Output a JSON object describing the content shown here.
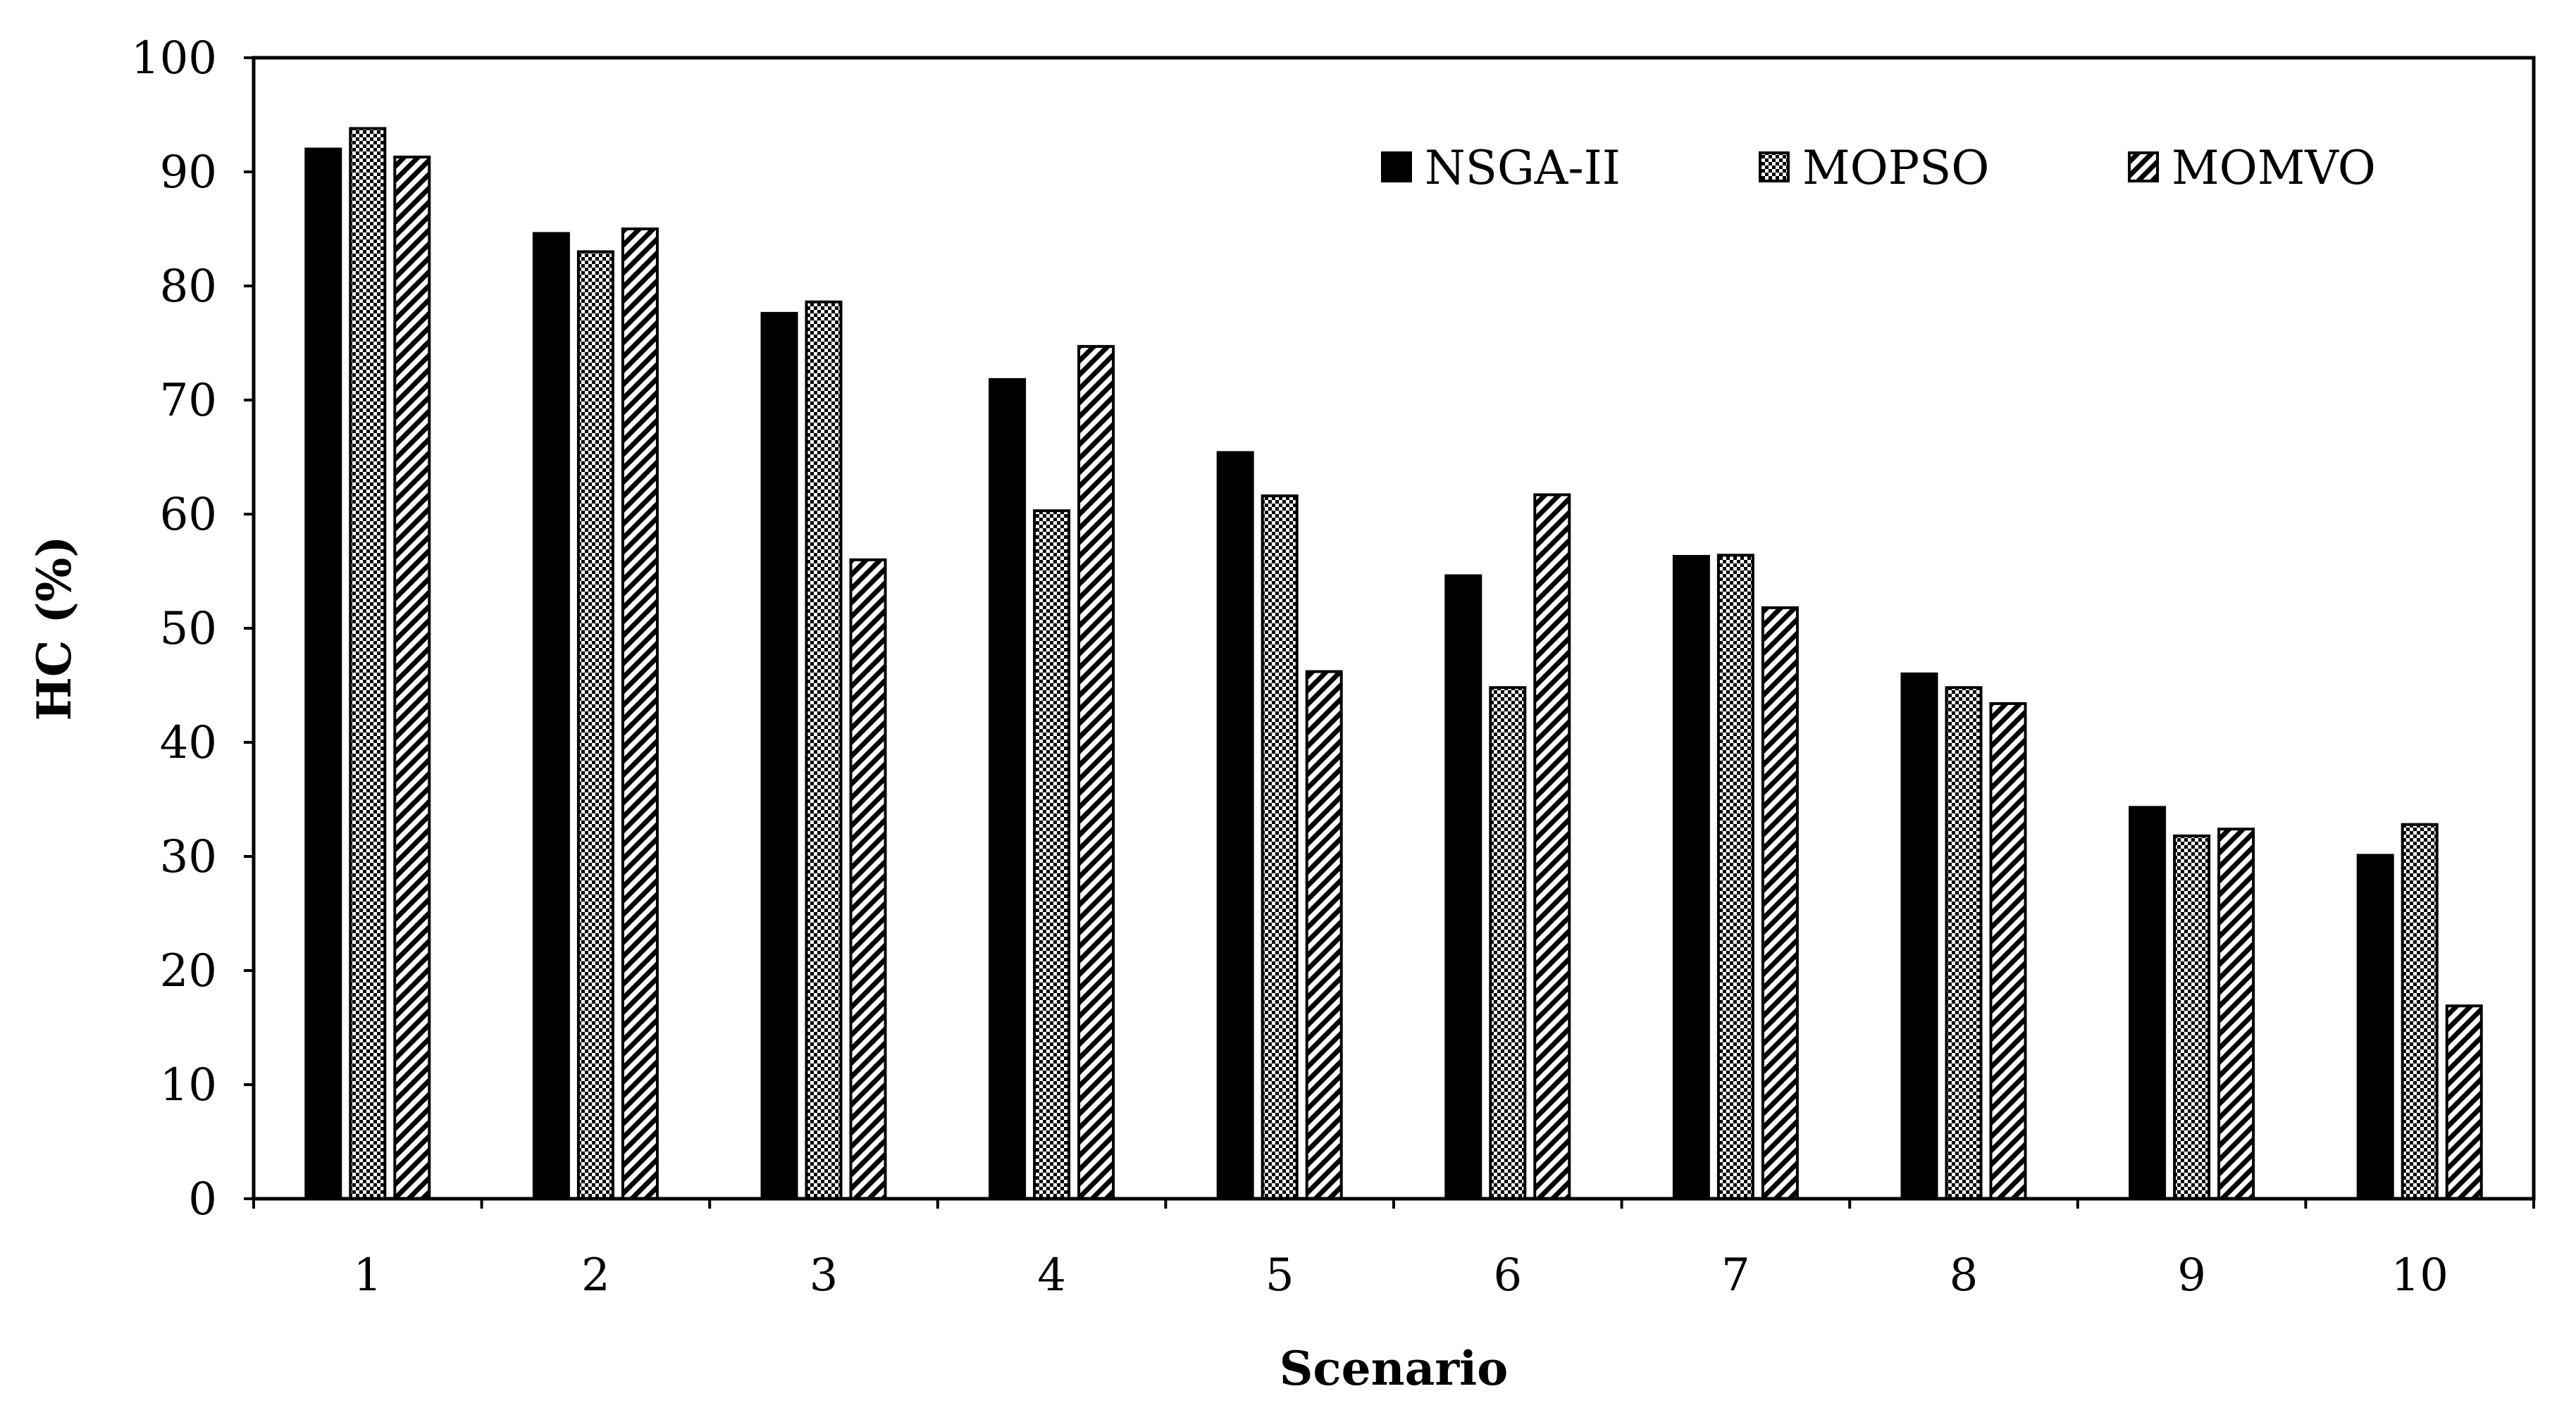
{
  "chart_data": {
    "type": "bar",
    "title": "",
    "xlabel": "Scenario",
    "ylabel": "HC (%)",
    "ylim": [
      0,
      100
    ],
    "ytick_step": 10,
    "yticks": [
      "0",
      "10",
      "20",
      "30",
      "40",
      "50",
      "60",
      "70",
      "80",
      "90",
      "100"
    ],
    "categories": [
      "1",
      "2",
      "3",
      "4",
      "5",
      "6",
      "7",
      "8",
      "9",
      "10"
    ],
    "legend_position": "top-right",
    "series": [
      {
        "name": "NSGA-II",
        "pattern": "solid",
        "values": [
          92.0,
          84.6,
          77.6,
          71.8,
          65.4,
          54.6,
          56.3,
          46.0,
          34.3,
          30.1
        ]
      },
      {
        "name": "MOPSO",
        "pattern": "checker",
        "values": [
          93.8,
          83.0,
          78.6,
          60.3,
          61.6,
          44.8,
          56.4,
          44.8,
          31.8,
          32.8
        ]
      },
      {
        "name": "MOMVO",
        "pattern": "diagonal",
        "values": [
          91.3,
          85.0,
          56.0,
          74.7,
          46.2,
          61.7,
          51.8,
          43.4,
          32.4,
          16.9
        ]
      }
    ],
    "colors": {
      "axis": "#000000",
      "bar_fill": "#000000",
      "bar_stroke": "#000000",
      "background": "#ffffff"
    }
  }
}
